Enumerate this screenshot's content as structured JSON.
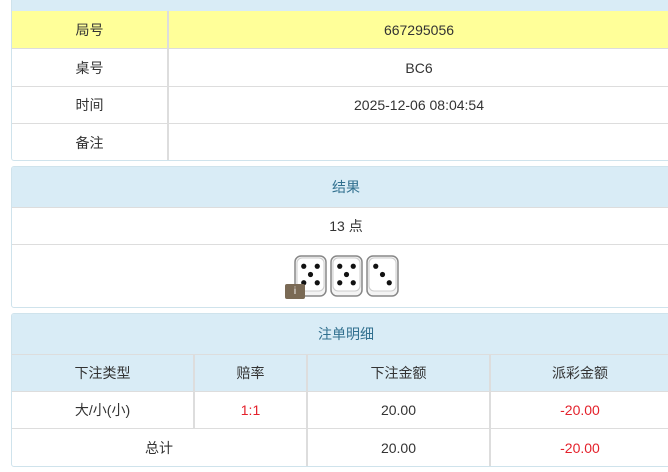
{
  "info": {
    "rows": [
      {
        "label": "局号",
        "value": "667295056"
      },
      {
        "label": "桌号",
        "value": "BC6"
      },
      {
        "label": "时间",
        "value": "2025-12-06 08:04:54"
      },
      {
        "label": "备注",
        "value": ""
      }
    ]
  },
  "result": {
    "title": "结果",
    "points": "13 点",
    "dice": [
      5,
      5,
      3
    ],
    "badge": "i"
  },
  "bets": {
    "title": "注单明细",
    "columns": [
      "下注类型",
      "赔率",
      "下注金额",
      "派彩金额"
    ],
    "rows": [
      {
        "type": "大/小(小)",
        "odds": "1:1",
        "amount": "20.00",
        "payout": "-20.00"
      }
    ],
    "total": {
      "label": "总计",
      "amount": "20.00",
      "payout": "-20.00"
    }
  },
  "colors": {
    "highlight": "#ffff99",
    "header": "#d9ecf6",
    "negative": "#e4212b"
  }
}
